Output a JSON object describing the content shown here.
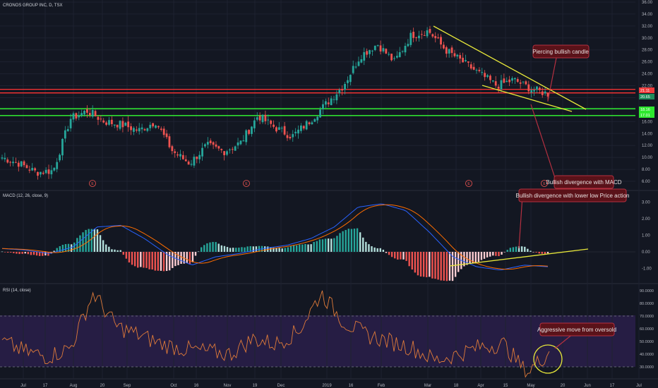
{
  "header": {
    "symbol": "CRONOS GROUP INC, D, TSX",
    "macd_label": "MACD (12, 26, close, 9)",
    "rsi_label": "RSI (14, close)"
  },
  "colors": {
    "background": "#131722",
    "up": "#26a69a",
    "down": "#ef5350",
    "trendline": "#e8e83a",
    "support": "#33ff33",
    "resistance": "#ff3333",
    "macd_line": "#2962ff",
    "signal_line": "#ff6d00",
    "rsi_line": "#e07b39",
    "rsi_band": "#2a1f4a",
    "annotation_bg": "#5a1219",
    "annotation_border": "#b53040"
  },
  "annotations": {
    "piercing": "Piercing bullish candle",
    "bullish_macd": "Bullish divergence with MACD",
    "bullish_lower_low": "Bullish divergence with lower low Price action",
    "aggressive": "Aggressive move from oversold"
  },
  "price_axis": [
    "36.00",
    "34.00",
    "32.00",
    "30.00",
    "28.00",
    "26.00",
    "24.00",
    "22.00",
    "20.00",
    "18.00",
    "16.00",
    "14.00",
    "12.00",
    "10.00",
    "8.00",
    "6.00"
  ],
  "macd_axis": [
    "3.00",
    "2.00",
    "1.00",
    "0.00",
    "-1.00"
  ],
  "rsi_axis": [
    "90.0000",
    "80.0000",
    "70.0000",
    "60.0000",
    "50.0000",
    "40.0000",
    "30.0000"
  ],
  "price_badges": [
    {
      "text": "21.11",
      "color": "#ef3b3b"
    },
    {
      "text": "20.65",
      "color": "#1e8c5a"
    },
    {
      "text": "18.16",
      "color": "#2ee82e"
    },
    {
      "text": "17.01",
      "color": "#2ee82e"
    }
  ],
  "earnings_marker": "E",
  "x_axis": [
    "Jul",
    "17",
    "Aug",
    "20",
    "Sep",
    "Oct",
    "16",
    "Nov",
    "19",
    "Dec",
    "2019",
    "16",
    "Feb",
    "Mar",
    "18",
    "Apr",
    "15",
    "May",
    "20",
    "Jun",
    "17",
    "Jul"
  ],
  "chart_data": {
    "type": "candlestick",
    "ylim": [
      5,
      36
    ],
    "support_levels": [
      18.16,
      17.01
    ],
    "resistance_levels": [
      21.4,
      20.8
    ],
    "rsi_levels": [
      70,
      30
    ],
    "close_series_keypoints": [
      10.0,
      9.0,
      7.5,
      7.8,
      16.5,
      17.8,
      16.0,
      15.5,
      14.5,
      16.0,
      11.0,
      9.0,
      12.0,
      11.0,
      12.5,
      17.0,
      15.0,
      13.5,
      16.0,
      19.0,
      22.0,
      27.0,
      29.0,
      26.0,
      30.5,
      31.2,
      28.0,
      26.0,
      24.0,
      22.0,
      23.0,
      21.5,
      20.65
    ],
    "macd_keypoints": [
      0.2,
      0.1,
      -0.1,
      0.3,
      1.5,
      1.6,
      0.8,
      -0.2,
      -0.8,
      -0.3,
      -0.1,
      0.2,
      0.4,
      0.8,
      1.5,
      2.7,
      2.9,
      2.5,
      1.2,
      -0.3,
      -0.9,
      -1.1,
      -0.8,
      -0.9
    ],
    "rsi_keypoints": [
      50,
      42,
      38,
      45,
      88,
      62,
      55,
      48,
      44,
      42,
      40,
      52,
      48,
      58,
      88,
      65,
      55,
      50,
      45,
      35,
      40,
      46,
      48,
      25,
      42
    ]
  }
}
